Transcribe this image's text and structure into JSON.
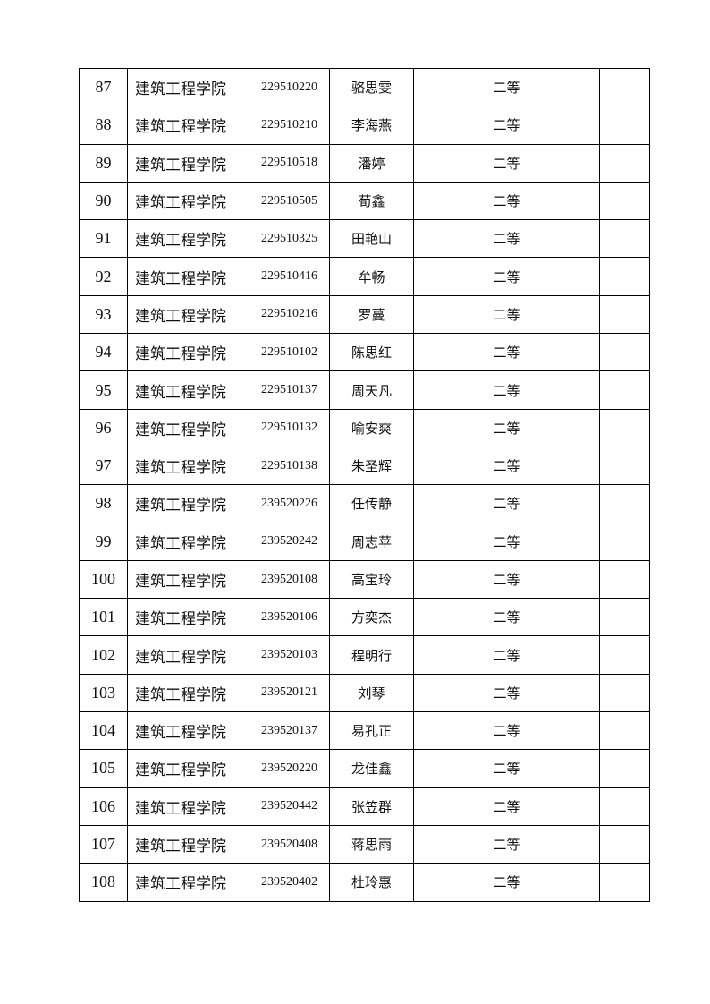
{
  "table": {
    "rows": [
      {
        "no": "87",
        "college": "建筑工程学院",
        "id": "229510220",
        "name": "骆思雯",
        "level": "二等",
        "note": ""
      },
      {
        "no": "88",
        "college": "建筑工程学院",
        "id": "229510210",
        "name": "李海燕",
        "level": "二等",
        "note": ""
      },
      {
        "no": "89",
        "college": "建筑工程学院",
        "id": "229510518",
        "name": "潘婷",
        "level": "二等",
        "note": ""
      },
      {
        "no": "90",
        "college": "建筑工程学院",
        "id": "229510505",
        "name": "荀鑫",
        "level": "二等",
        "note": ""
      },
      {
        "no": "91",
        "college": "建筑工程学院",
        "id": "229510325",
        "name": "田艳山",
        "level": "二等",
        "note": ""
      },
      {
        "no": "92",
        "college": "建筑工程学院",
        "id": "229510416",
        "name": "牟畅",
        "level": "二等",
        "note": ""
      },
      {
        "no": "93",
        "college": "建筑工程学院",
        "id": "229510216",
        "name": "罗蔓",
        "level": "二等",
        "note": ""
      },
      {
        "no": "94",
        "college": "建筑工程学院",
        "id": "229510102",
        "name": "陈思红",
        "level": "二等",
        "note": ""
      },
      {
        "no": "95",
        "college": "建筑工程学院",
        "id": "229510137",
        "name": "周天凡",
        "level": "二等",
        "note": ""
      },
      {
        "no": "96",
        "college": "建筑工程学院",
        "id": "229510132",
        "name": "喻安爽",
        "level": "二等",
        "note": ""
      },
      {
        "no": "97",
        "college": "建筑工程学院",
        "id": "229510138",
        "name": "朱圣辉",
        "level": "二等",
        "note": ""
      },
      {
        "no": "98",
        "college": "建筑工程学院",
        "id": "239520226",
        "name": "任传静",
        "level": "二等",
        "note": ""
      },
      {
        "no": "99",
        "college": "建筑工程学院",
        "id": "239520242",
        "name": "周志苹",
        "level": "二等",
        "note": ""
      },
      {
        "no": "100",
        "college": "建筑工程学院",
        "id": "239520108",
        "name": "高宝玲",
        "level": "二等",
        "note": ""
      },
      {
        "no": "101",
        "college": "建筑工程学院",
        "id": "239520106",
        "name": "方奕杰",
        "level": "二等",
        "note": ""
      },
      {
        "no": "102",
        "college": "建筑工程学院",
        "id": "239520103",
        "name": "程明行",
        "level": "二等",
        "note": ""
      },
      {
        "no": "103",
        "college": "建筑工程学院",
        "id": "239520121",
        "name": "刘琴",
        "level": "二等",
        "note": ""
      },
      {
        "no": "104",
        "college": "建筑工程学院",
        "id": "239520137",
        "name": "易孔正",
        "level": "二等",
        "note": ""
      },
      {
        "no": "105",
        "college": "建筑工程学院",
        "id": "239520220",
        "name": "龙佳鑫",
        "level": "二等",
        "note": ""
      },
      {
        "no": "106",
        "college": "建筑工程学院",
        "id": "239520442",
        "name": "张笠群",
        "level": "二等",
        "note": ""
      },
      {
        "no": "107",
        "college": "建筑工程学院",
        "id": "239520408",
        "name": "蒋思雨",
        "level": "二等",
        "note": ""
      },
      {
        "no": "108",
        "college": "建筑工程学院",
        "id": "239520402",
        "name": "杜玲惠",
        "level": "二等",
        "note": ""
      }
    ]
  }
}
